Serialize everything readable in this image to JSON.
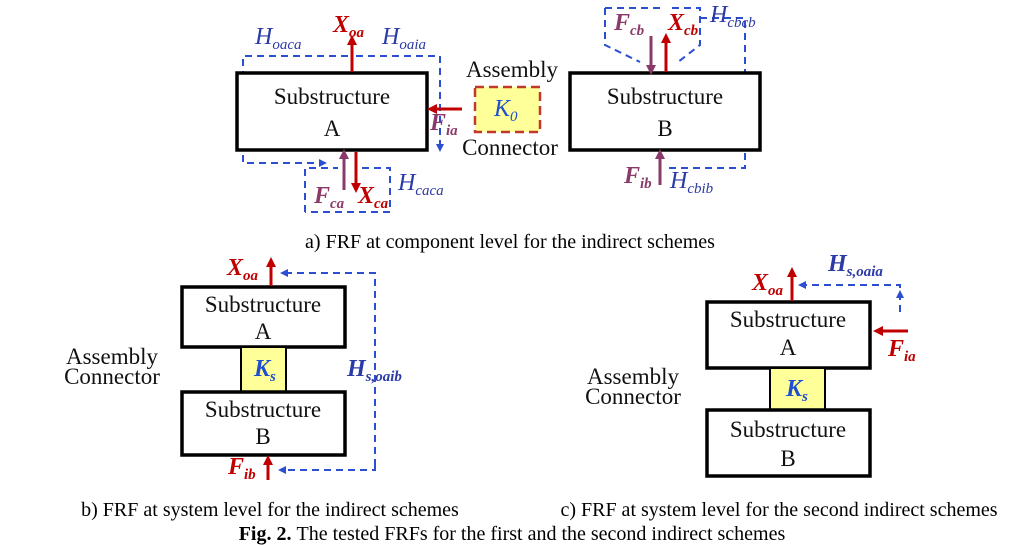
{
  "panel_a": {
    "substructure_a": {
      "title": "Substructure",
      "id": "A"
    },
    "substructure_b": {
      "title": "Substructure",
      "id": "B"
    },
    "connector": {
      "line1": "Assembly",
      "line2": "Connector",
      "stiffness": {
        "base": "K",
        "sub": "0"
      }
    },
    "labels": [
      {
        "base": "X",
        "sub": "oa"
      },
      {
        "base": "H",
        "sub": "oaca"
      },
      {
        "base": "H",
        "sub": "oaia"
      },
      {
        "base": "F",
        "sub": "ia"
      },
      {
        "base": "F",
        "sub": "ca"
      },
      {
        "base": "X",
        "sub": "ca"
      },
      {
        "base": "H",
        "sub": "caca"
      },
      {
        "base": "F",
        "sub": "cb"
      },
      {
        "base": "X",
        "sub": "cb"
      },
      {
        "base": "H",
        "sub": "cbcb"
      },
      {
        "base": "F",
        "sub": "ib"
      },
      {
        "base": "H",
        "sub": "cbib"
      }
    ],
    "caption": "a) FRF at component level for the indirect schemes"
  },
  "panel_b": {
    "substructure_a": {
      "title": "Substructure",
      "id": "A"
    },
    "substructure_b": {
      "title": "Substructure",
      "id": "B"
    },
    "connector": {
      "line1": "Assembly",
      "line2": "Connector",
      "stiffness": {
        "base": "K",
        "sub": "s"
      }
    },
    "labels": [
      {
        "base": "X",
        "sub": "oa"
      },
      {
        "base": "H",
        "sub": "s,oaib"
      },
      {
        "base": "F",
        "sub": "ib"
      }
    ],
    "caption": "b) FRF at system level for the indirect schemes"
  },
  "panel_c": {
    "substructure_a": {
      "title": "Substructure",
      "id": "A"
    },
    "substructure_b": {
      "title": "Substructure",
      "id": "B"
    },
    "connector": {
      "line1": "Assembly",
      "line2": "Connector",
      "stiffness": {
        "base": "K",
        "sub": "s"
      }
    },
    "labels": [
      {
        "base": "X",
        "sub": "oa"
      },
      {
        "base": "H",
        "sub": "s,oaia"
      },
      {
        "base": "F",
        "sub": "ia"
      }
    ],
    "caption": "c) FRF at system level for the second indirect schemes"
  },
  "figure_caption": {
    "label": "Fig. 2.",
    "text": "The tested FRFs for the first and the second indirect schemes"
  }
}
